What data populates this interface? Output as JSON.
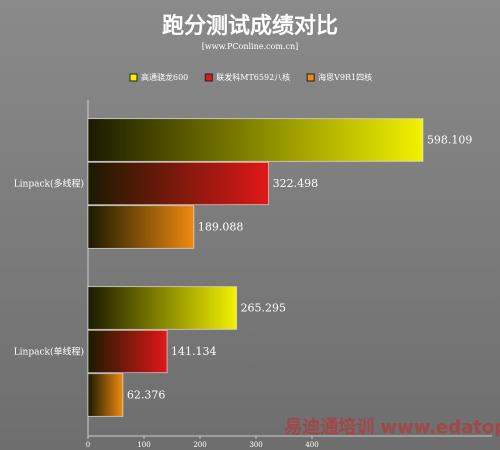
{
  "chart_data": {
    "type": "hbar",
    "title": "跑分测试成绩对比",
    "subtitle": "[www.PConline.com.cn]",
    "categories": [
      "Linpack(多线程)",
      "Linpack(单线程)"
    ],
    "series": [
      {
        "name": "高通骁龙600",
        "color": "#f2f200",
        "values": [
          598.109,
          265.295
        ]
      },
      {
        "name": "联发科MT6592八核",
        "color": "#e01818",
        "values": [
          322.498,
          141.134
        ]
      },
      {
        "name": "海思V9R1四核",
        "color": "#f08a10",
        "values": [
          189.088,
          62.376
        ]
      }
    ],
    "xlim": [
      0,
      700
    ],
    "xticks": [
      0,
      100,
      200,
      300,
      400
    ],
    "watermark": "易迪通培训 www.edatop.com"
  }
}
